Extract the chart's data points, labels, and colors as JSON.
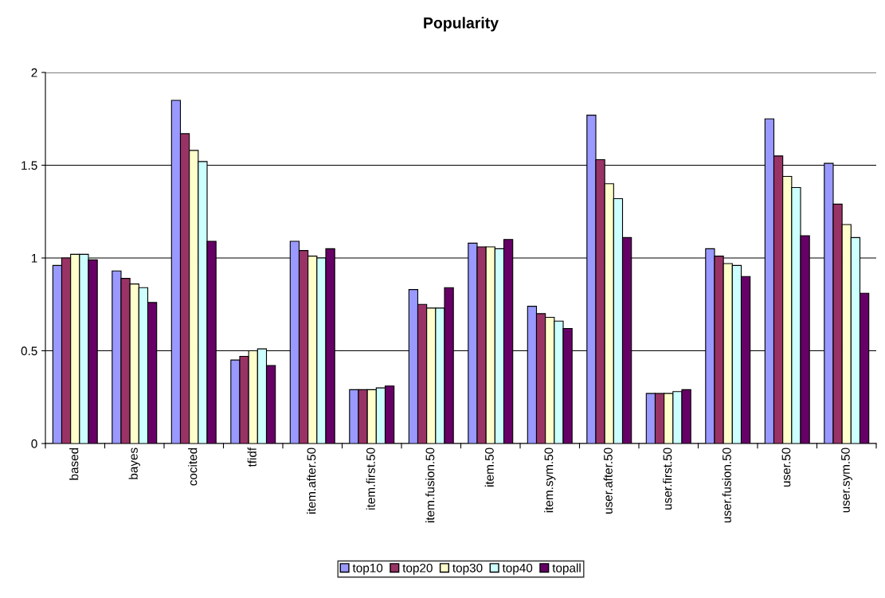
{
  "chart_data": {
    "type": "bar",
    "title": "Popularity",
    "categories": [
      "based",
      "bayes",
      "cocited",
      "tfidf",
      "item.after.50",
      "item.first.50",
      "item.fusion.50",
      "item.50",
      "item.sym.50",
      "user.after.50",
      "user.first.50",
      "user.fusion.50",
      "user.50",
      "user.sym.50"
    ],
    "series": [
      {
        "name": "top10",
        "color": "#9999ff",
        "values": [
          0.96,
          0.93,
          1.85,
          0.45,
          1.09,
          0.29,
          0.83,
          1.08,
          0.74,
          1.77,
          0.27,
          1.05,
          1.75,
          1.51
        ]
      },
      {
        "name": "top20",
        "color": "#993366",
        "values": [
          1.0,
          0.89,
          1.67,
          0.47,
          1.04,
          0.29,
          0.75,
          1.06,
          0.7,
          1.53,
          0.27,
          1.01,
          1.55,
          1.29
        ]
      },
      {
        "name": "top30",
        "color": "#ffffcc",
        "values": [
          1.02,
          0.86,
          1.58,
          0.5,
          1.01,
          0.29,
          0.73,
          1.06,
          0.68,
          1.4,
          0.27,
          0.97,
          1.44,
          1.18
        ]
      },
      {
        "name": "top40",
        "color": "#ccffff",
        "values": [
          1.02,
          0.84,
          1.52,
          0.51,
          1.0,
          0.3,
          0.73,
          1.05,
          0.66,
          1.32,
          0.28,
          0.96,
          1.38,
          1.11
        ]
      },
      {
        "name": "topall",
        "color": "#660066",
        "values": [
          0.99,
          0.76,
          1.09,
          0.42,
          1.05,
          0.31,
          0.84,
          1.1,
          0.62,
          1.11,
          0.29,
          0.9,
          1.12,
          0.81
        ]
      }
    ],
    "ylim": [
      0,
      2
    ],
    "yticks": [
      0,
      0.5,
      1,
      1.5,
      2
    ],
    "grid": "y",
    "legend": "bottom"
  }
}
